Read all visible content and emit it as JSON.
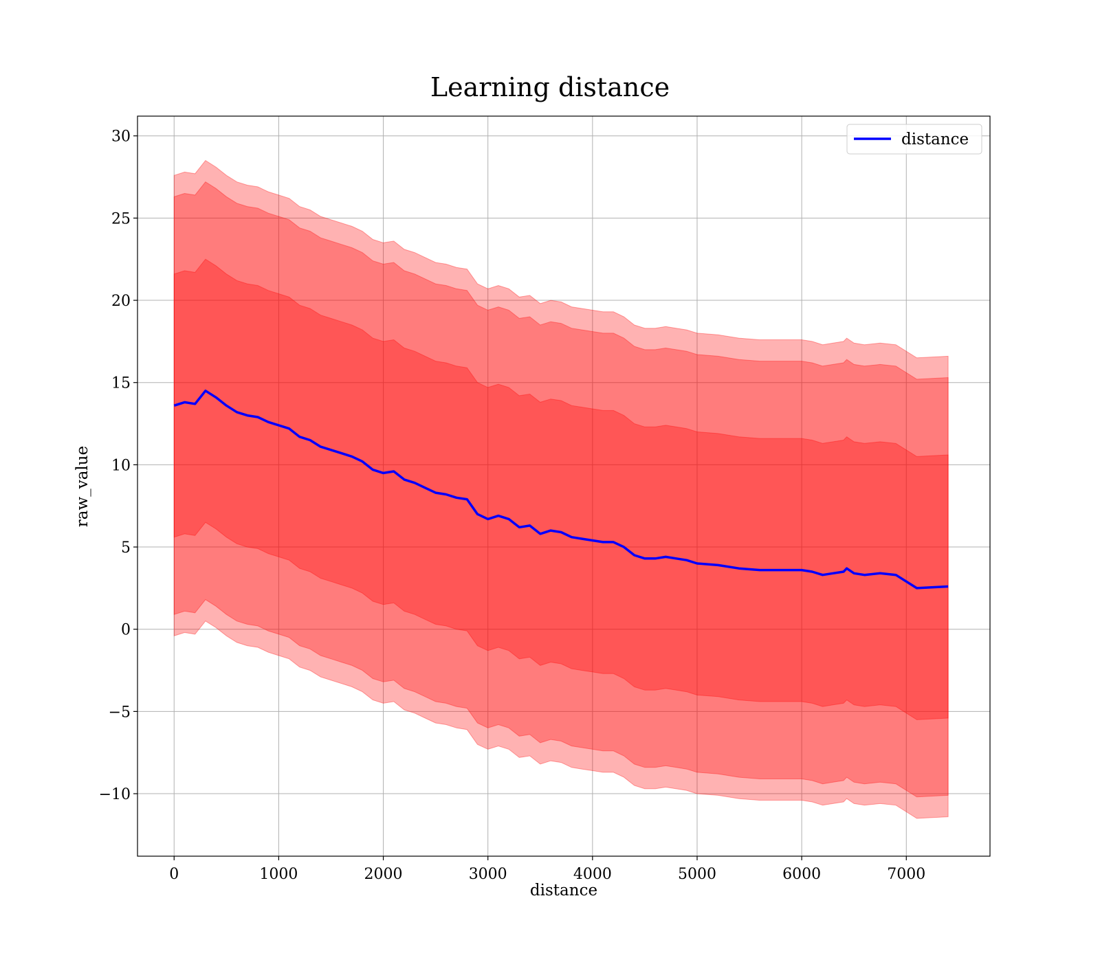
{
  "chart_data": {
    "type": "line",
    "title": "Learning distance",
    "xlabel": "distance",
    "ylabel": "raw_value",
    "xlim": [
      -350,
      7800
    ],
    "ylim": [
      -13.8,
      31.2
    ],
    "xticks": [
      0,
      1000,
      2000,
      3000,
      4000,
      5000,
      6000,
      7000
    ],
    "yticks": [
      -10,
      -5,
      0,
      5,
      10,
      15,
      20,
      25,
      30
    ],
    "grid": true,
    "legend_position": "upper-right",
    "colors": {
      "line": "#0000ff",
      "band": "#ff0000",
      "band_opacity": 0.3
    },
    "series": [
      {
        "name": "distance",
        "x": [
          0,
          100,
          200,
          300,
          400,
          500,
          600,
          700,
          800,
          900,
          1000,
          1100,
          1200,
          1300,
          1400,
          1500,
          1600,
          1700,
          1800,
          1900,
          2000,
          2100,
          2200,
          2300,
          2400,
          2500,
          2600,
          2700,
          2800,
          2900,
          3000,
          3100,
          3200,
          3300,
          3400,
          3500,
          3600,
          3700,
          3800,
          3900,
          4000,
          4100,
          4200,
          4300,
          4400,
          4500,
          4600,
          4700,
          4800,
          4900,
          5000,
          5200,
          5400,
          5600,
          5800,
          6000,
          6100,
          6200,
          6300,
          6400,
          6430,
          6500,
          6600,
          6750,
          6900,
          7100,
          7400
        ],
        "y": [
          13.6,
          13.8,
          13.7,
          14.5,
          14.1,
          13.6,
          13.2,
          13.0,
          12.9,
          12.6,
          12.4,
          12.2,
          11.7,
          11.5,
          11.1,
          10.9,
          10.7,
          10.5,
          10.2,
          9.7,
          9.5,
          9.6,
          9.1,
          8.9,
          8.6,
          8.3,
          8.2,
          8.0,
          7.9,
          7.0,
          6.7,
          6.9,
          6.7,
          6.2,
          6.3,
          5.8,
          6.0,
          5.9,
          5.6,
          5.5,
          5.4,
          5.3,
          5.3,
          5.0,
          4.5,
          4.3,
          4.3,
          4.4,
          4.3,
          4.2,
          4.0,
          3.9,
          3.7,
          3.6,
          3.6,
          3.6,
          3.5,
          3.3,
          3.4,
          3.5,
          3.7,
          3.4,
          3.3,
          3.4,
          3.3,
          2.5,
          2.6
        ]
      }
    ],
    "bands": [
      {
        "sigma_multiple": 1,
        "half_width": 8.0
      },
      {
        "sigma_multiple": 1.6,
        "half_width": 12.7
      },
      {
        "sigma_multiple": 1.75,
        "half_width": 14.0
      }
    ],
    "legend": [
      {
        "label": "distance"
      }
    ]
  }
}
